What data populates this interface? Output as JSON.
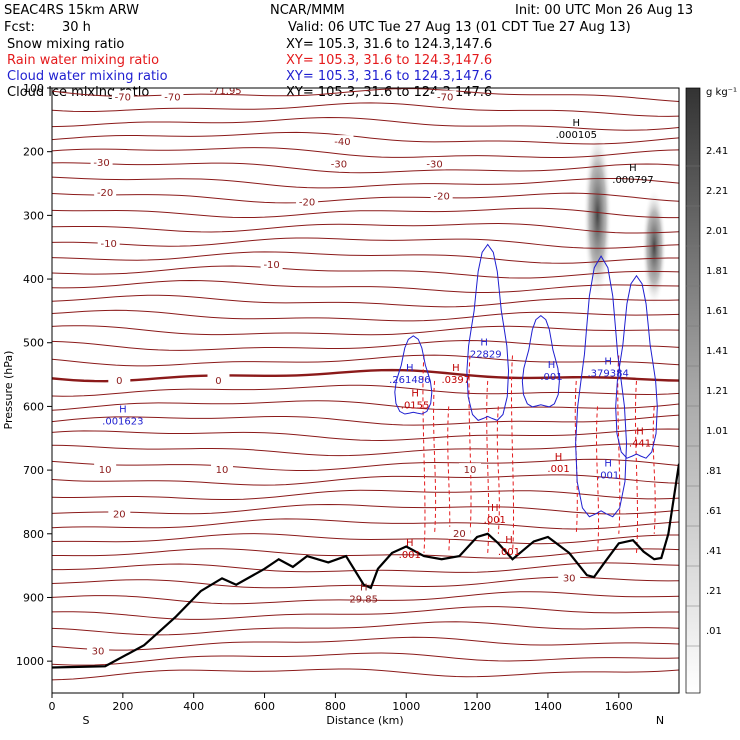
{
  "header": {
    "model": "SEAC4RS 15km ARW",
    "org": "NCAR/MMM",
    "init": "Init: 00 UTC Mon 26 Aug 13",
    "fcst_label": "Fcst:",
    "fcst_value": "30 h",
    "valid": "Valid: 06 UTC Tue 27 Aug 13 (01 CDT Tue 27 Aug 13)",
    "fields": [
      {
        "name": "Snow mixing ratio",
        "xy": "XY= 105.3, 31.6 to 124.3,147.6",
        "color": "#000000"
      },
      {
        "name": "Rain water mixing ratio",
        "xy": "XY= 105.3, 31.6 to 124.3,147.6",
        "color": "#e41a1c"
      },
      {
        "name": "Cloud water mixing ratio",
        "xy": "XY= 105.3, 31.6 to 124.3,147.6",
        "color": "#1f1fd0"
      },
      {
        "name": "Cloud ice mixing ratio",
        "xy": "XY= 105.3, 31.6 to 124.3,147.6",
        "color": "#000000"
      }
    ]
  },
  "colorbar": {
    "unit": "g kg⁻¹",
    "levels": [
      "2.41",
      "2.21",
      "2.01",
      "1.81",
      "1.61",
      "1.41",
      "1.21",
      "1.01",
      ".81",
      ".61",
      ".41",
      ".21",
      ".01"
    ]
  },
  "chart_data": {
    "type": "contour",
    "xlabel": "Distance (km)",
    "ylabel": "Pressure (hPa)",
    "xlim": [
      0,
      1770
    ],
    "ylim": [
      1050,
      100
    ],
    "xticks": [
      0,
      200,
      400,
      600,
      800,
      1000,
      1200,
      1400,
      1600
    ],
    "yticks": [
      100,
      200,
      300,
      400,
      500,
      600,
      700,
      800,
      900,
      1000
    ],
    "x_endpoints": {
      "left": "S",
      "right": "N"
    },
    "terrain": [
      [
        0,
        1010
      ],
      [
        150,
        1008
      ],
      [
        260,
        975
      ],
      [
        350,
        930
      ],
      [
        420,
        890
      ],
      [
        480,
        870
      ],
      [
        520,
        880
      ],
      [
        600,
        855
      ],
      [
        640,
        840
      ],
      [
        680,
        852
      ],
      [
        720,
        835
      ],
      [
        780,
        845
      ],
      [
        830,
        835
      ],
      [
        880,
        880
      ],
      [
        900,
        885
      ],
      [
        920,
        855
      ],
      [
        960,
        830
      ],
      [
        1000,
        820
      ],
      [
        1050,
        835
      ],
      [
        1100,
        840
      ],
      [
        1150,
        835
      ],
      [
        1200,
        805
      ],
      [
        1230,
        800
      ],
      [
        1260,
        815
      ],
      [
        1300,
        840
      ],
      [
        1360,
        812
      ],
      [
        1400,
        805
      ],
      [
        1460,
        830
      ],
      [
        1510,
        865
      ],
      [
        1530,
        868
      ],
      [
        1560,
        845
      ],
      [
        1600,
        815
      ],
      [
        1640,
        810
      ],
      [
        1670,
        828
      ],
      [
        1700,
        840
      ],
      [
        1720,
        838
      ],
      [
        1740,
        800
      ],
      [
        1770,
        690
      ]
    ],
    "isotherms_C": [
      {
        "value": -70,
        "labels": [
          [
            200,
            115
          ],
          [
            340,
            115
          ],
          [
            1110,
            115
          ]
        ]
      },
      {
        "value": -40,
        "labels": [
          [
            820,
            185
          ]
        ]
      },
      {
        "value": -30,
        "labels": [
          [
            140,
            218
          ],
          [
            810,
            220
          ],
          [
            1080,
            220
          ]
        ]
      },
      {
        "value": -20,
        "labels": [
          [
            150,
            265
          ],
          [
            720,
            280
          ],
          [
            1100,
            270
          ]
        ]
      },
      {
        "value": -10,
        "labels": [
          [
            160,
            345
          ],
          [
            620,
            378
          ]
        ]
      },
      {
        "value": 0,
        "labels": [
          [
            190,
            560
          ],
          [
            470,
            560
          ]
        ]
      },
      {
        "value": 10,
        "labels": [
          [
            150,
            700
          ],
          [
            480,
            700
          ],
          [
            1180,
            700
          ]
        ]
      },
      {
        "value": 20,
        "labels": [
          [
            190,
            770
          ],
          [
            1150,
            800
          ]
        ]
      },
      {
        "value": 30,
        "labels": [
          [
            130,
            985
          ],
          [
            1460,
            870
          ]
        ]
      }
    ],
    "isotherm_extra_labels": [
      {
        "text": "-71.95",
        "x": 490,
        "p": 105
      }
    ],
    "maxima_labels": [
      {
        "field": "snow",
        "text": ".000105",
        "x": 1480,
        "p": 175
      },
      {
        "field": "snow",
        "text": ".000797",
        "x": 1640,
        "p": 246
      },
      {
        "field": "cloud water",
        "text": ".001623",
        "x": 200,
        "p": 625
      },
      {
        "field": "cloud water",
        "text": ".261486",
        "x": 1010,
        "p": 560
      },
      {
        "field": "cloud water",
        "text": ".22829",
        "x": 1220,
        "p": 520
      },
      {
        "field": "cloud water",
        "text": ".001",
        "x": 1410,
        "p": 555
      },
      {
        "field": "cloud water",
        "text": ".379384",
        "x": 1570,
        "p": 550
      },
      {
        "field": "cloud water",
        "text": ".001",
        "x": 1570,
        "p": 710
      },
      {
        "field": "rain water",
        "text": ".0155",
        "x": 1025,
        "p": 600
      },
      {
        "field": "rain water",
        "text": ".0397",
        "x": 1140,
        "p": 560
      },
      {
        "field": "rain water",
        "text": ".001",
        "x": 1430,
        "p": 700
      },
      {
        "field": "rain water",
        "text": ".001",
        "x": 1250,
        "p": 780
      },
      {
        "field": "rain water",
        "text": ".001",
        "x": 1290,
        "p": 830
      },
      {
        "field": "rain water",
        "text": ".001",
        "x": 1010,
        "p": 835
      },
      {
        "field": "rain water",
        "text": ".441",
        "x": 1660,
        "p": 660
      },
      {
        "field": "terrain",
        "text": "29.85",
        "x": 880,
        "p": 905
      }
    ]
  }
}
